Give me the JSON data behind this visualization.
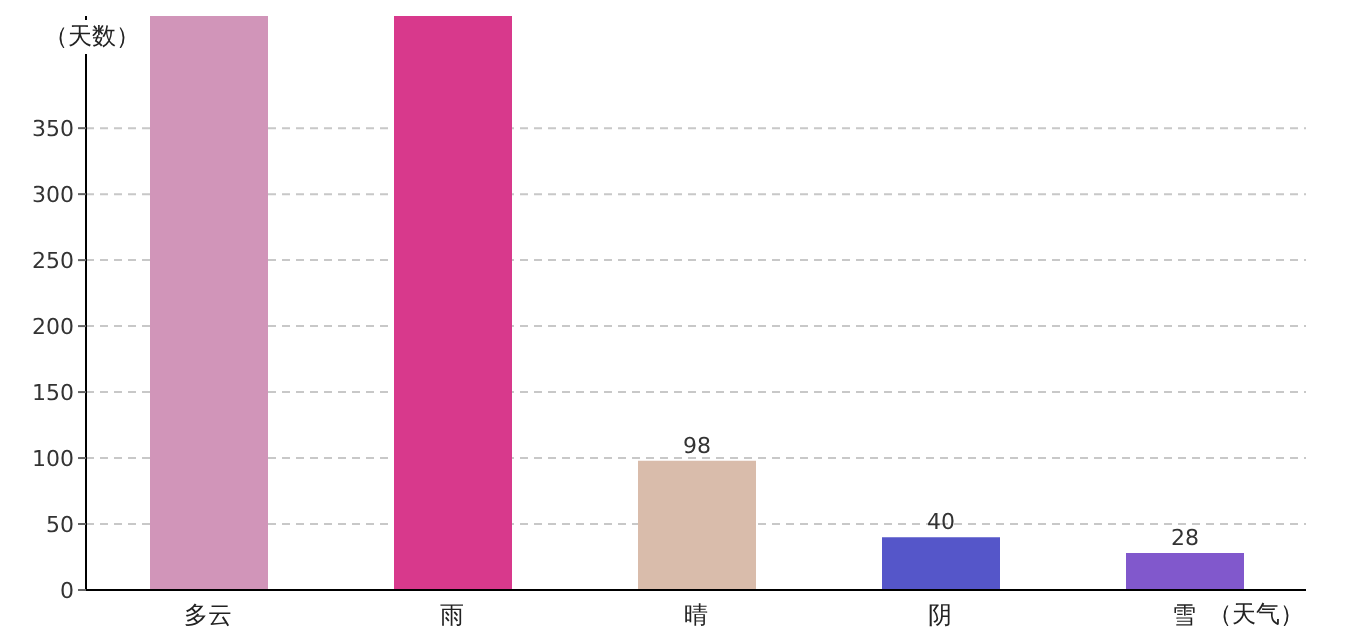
{
  "chart_data": {
    "type": "bar",
    "xlabel": "（天气）",
    "ylabel": "（天数）",
    "categories": [
      "多云",
      "雨",
      "晴",
      "阴",
      "雪"
    ],
    "values": [
      435,
      435,
      98,
      40,
      28
    ],
    "colors": [
      "#d195b9",
      "#d8398c",
      "#d9bcab",
      "#5556c9",
      "#8158cc"
    ],
    "value_labels": [
      null,
      null,
      "98",
      "40",
      "28"
    ],
    "ylim": [
      0,
      435
    ],
    "yticks": [
      0,
      50,
      100,
      150,
      200,
      250,
      300,
      350
    ],
    "grid": "y"
  }
}
